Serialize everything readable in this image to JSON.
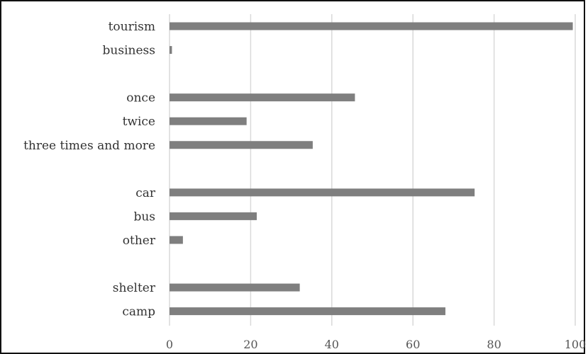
{
  "chart_data": {
    "type": "bar",
    "orientation": "horizontal",
    "categories": [
      "tourism",
      "business",
      "",
      "once",
      "twice",
      "three times and more",
      "",
      "car",
      "bus",
      "other",
      "",
      "shelter",
      "camp"
    ],
    "values": [
      99.4,
      0.6,
      null,
      45.7,
      19.0,
      35.3,
      null,
      75.2,
      21.5,
      3.3,
      null,
      32.1,
      68.0
    ],
    "xlim": [
      0,
      100
    ],
    "xticks": [
      0,
      20,
      40,
      60,
      80,
      100
    ],
    "grid": true,
    "bar_color": "#7f7f7f",
    "grid_color": "#d9d9d9",
    "title": "",
    "xlabel": "",
    "ylabel": ""
  }
}
